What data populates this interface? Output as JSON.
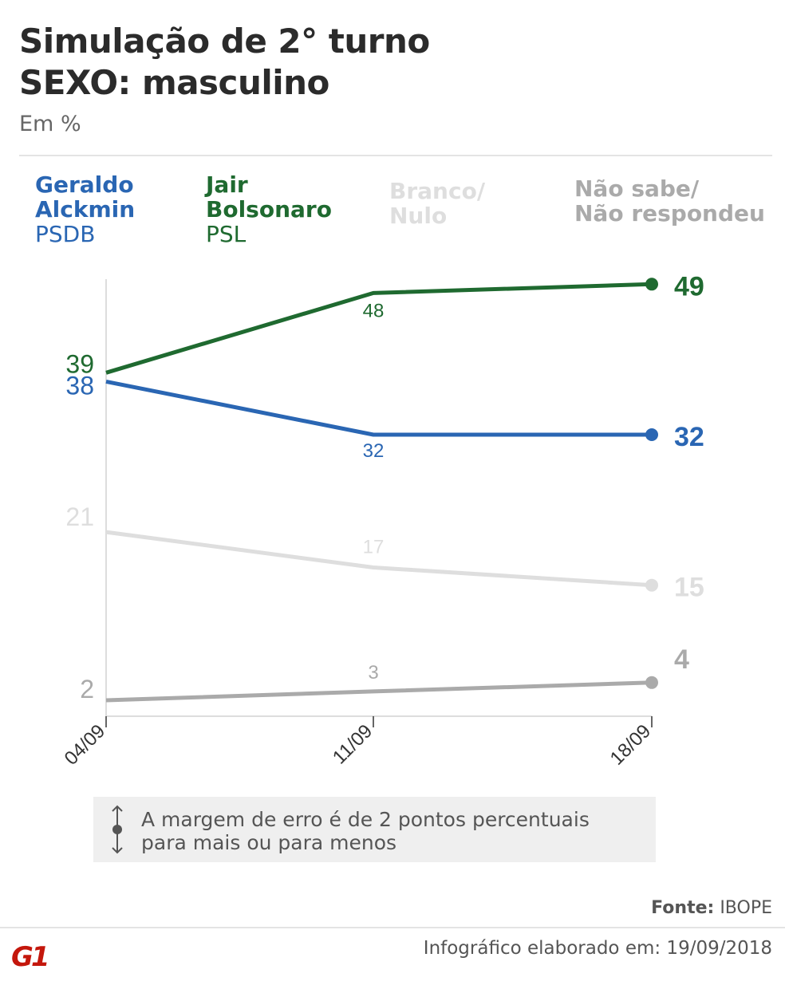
{
  "header": {
    "title_line1": "Simulação de 2° turno",
    "title_line2": "SEXO: masculino",
    "subtitle": "Em %"
  },
  "legend": [
    {
      "name_line1": "Geraldo",
      "name_line2": "Alckmin",
      "party": "PSDB",
      "color": "#2a66b3"
    },
    {
      "name_line1": "Jair",
      "name_line2": "Bolsonaro",
      "party": "PSL",
      "color": "#1f6a30"
    },
    {
      "name_line1": "Branco/",
      "name_line2": "Nulo",
      "party": "",
      "color": "#dedede"
    },
    {
      "name_line1": "Não sabe/",
      "name_line2": "Não respondeu",
      "party": "",
      "color": "#aaaaaa"
    }
  ],
  "chart_data": {
    "type": "line",
    "categories": [
      "04/09",
      "11/09",
      "18/09"
    ],
    "series": [
      {
        "name": "Jair Bolsonaro",
        "values": [
          39,
          48,
          49
        ],
        "color": "#1f6a30"
      },
      {
        "name": "Geraldo Alckmin",
        "values": [
          38,
          32,
          32
        ],
        "color": "#2a66b3"
      },
      {
        "name": "Branco/Nulo",
        "values": [
          21,
          17,
          15
        ],
        "color": "#dedede"
      },
      {
        "name": "Não sabe/Não respondeu",
        "values": [
          2,
          3,
          4
        ],
        "color": "#aaaaaa"
      }
    ],
    "grid": false,
    "legend_placement": "top"
  },
  "note": {
    "line1": "A margem de erro é de 2 pontos percentuais",
    "line2": "para mais ou para menos"
  },
  "footer": {
    "source_label": "Fonte:",
    "source": "IBOPE",
    "made": "Infográfico elaborado em: 19/09/2018",
    "logo": "G1"
  }
}
